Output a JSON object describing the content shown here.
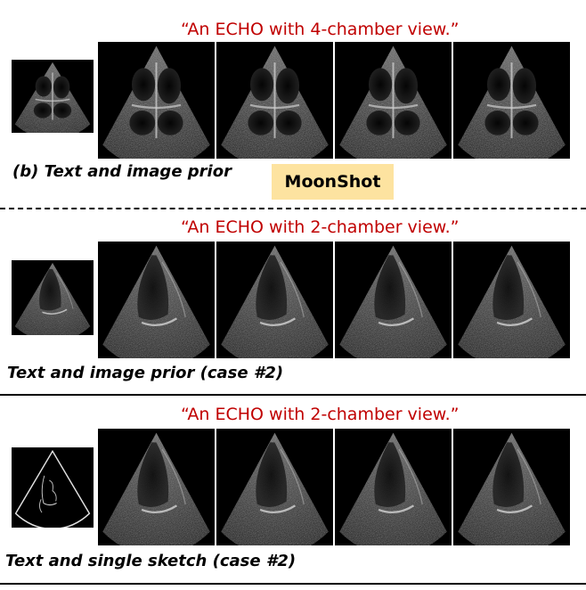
{
  "sections": [
    {
      "prompt": "“An ECHO with 4-chamber view.”",
      "caption": "(b) Text and image prior",
      "badge": "MoonShot",
      "view": "4-chamber"
    },
    {
      "prompt": "“An ECHO with 2-chamber view.”",
      "caption": "Text and image prior (case #2)",
      "view": "2-chamber"
    },
    {
      "prompt": "“An ECHO with 2-chamber view.”",
      "caption": "Text and single sketch (case #2)",
      "view": "2-chamber"
    }
  ]
}
